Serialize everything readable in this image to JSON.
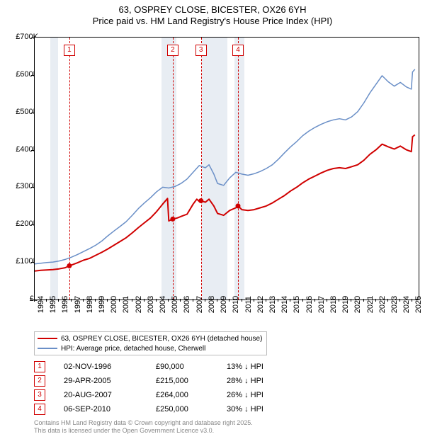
{
  "title": {
    "line1": "63, OSPREY CLOSE, BICESTER, OX26 6YH",
    "line2": "Price paid vs. HM Land Registry's House Price Index (HPI)",
    "fontsize": 13,
    "color": "#000000"
  },
  "chart": {
    "type": "line",
    "background_color": "#ffffff",
    "recession_band_color": "#e8edf3",
    "border_color": "#000000",
    "x": {
      "min": 1994,
      "max": 2025.5,
      "tick_years": [
        1994,
        1995,
        1996,
        1997,
        1998,
        1999,
        2000,
        2001,
        2002,
        2003,
        2004,
        2005,
        2006,
        2007,
        2008,
        2009,
        2010,
        2011,
        2012,
        2013,
        2014,
        2015,
        2016,
        2017,
        2018,
        2019,
        2020,
        2021,
        2022,
        2023,
        2024,
        2025
      ],
      "label_fontsize": 11
    },
    "y": {
      "min": 0,
      "max": 700000,
      "ticks": [
        0,
        100000,
        200000,
        300000,
        400000,
        500000,
        600000,
        700000
      ],
      "tick_labels": [
        "£0",
        "£100K",
        "£200K",
        "£300K",
        "£400K",
        "£500K",
        "£600K",
        "£700K"
      ],
      "label_fontsize": 11
    },
    "recession_bands": [
      {
        "start": 1995.3,
        "end": 1995.9
      },
      {
        "start": 2004.4,
        "end": 2005.6
      },
      {
        "start": 2007.7,
        "end": 2009.8
      },
      {
        "start": 2010.4,
        "end": 2011.2
      }
    ],
    "sale_markers": [
      {
        "n": "1",
        "year": 1996.84,
        "date": "02-NOV-1996",
        "price": "£90,000",
        "delta_pct": "13%",
        "delta_dir": "down"
      },
      {
        "n": "2",
        "year": 2005.33,
        "date": "29-APR-2005",
        "price": "£215,000",
        "delta_pct": "28%",
        "delta_dir": "down"
      },
      {
        "n": "3",
        "year": 2007.64,
        "date": "20-AUG-2007",
        "price": "£264,000",
        "delta_pct": "26%",
        "delta_dir": "down"
      },
      {
        "n": "4",
        "year": 2010.68,
        "date": "06-SEP-2010",
        "price": "£250,000",
        "delta_pct": "30%",
        "delta_dir": "down"
      }
    ],
    "series": [
      {
        "name": "price_paid",
        "label": "63, OSPREY CLOSE, BICESTER, OX26 6YH (detached house)",
        "color": "#d00000",
        "line_width": 2,
        "markers": [
          {
            "x": 1996.84,
            "y": 90000
          },
          {
            "x": 2005.33,
            "y": 215000
          },
          {
            "x": 2007.64,
            "y": 264000
          },
          {
            "x": 2010.68,
            "y": 250000
          }
        ],
        "marker_radius": 3.5,
        "points": [
          {
            "x": 1994.0,
            "y": 76000
          },
          {
            "x": 1994.5,
            "y": 78000
          },
          {
            "x": 1995.0,
            "y": 79000
          },
          {
            "x": 1995.5,
            "y": 80000
          },
          {
            "x": 1996.0,
            "y": 82000
          },
          {
            "x": 1996.5,
            "y": 85000
          },
          {
            "x": 1996.84,
            "y": 90000
          },
          {
            "x": 1997.0,
            "y": 92000
          },
          {
            "x": 1997.5,
            "y": 98000
          },
          {
            "x": 1998.0,
            "y": 105000
          },
          {
            "x": 1998.5,
            "y": 110000
          },
          {
            "x": 1999.0,
            "y": 118000
          },
          {
            "x": 1999.5,
            "y": 126000
          },
          {
            "x": 2000.0,
            "y": 135000
          },
          {
            "x": 2000.5,
            "y": 145000
          },
          {
            "x": 2001.0,
            "y": 155000
          },
          {
            "x": 2001.5,
            "y": 165000
          },
          {
            "x": 2002.0,
            "y": 178000
          },
          {
            "x": 2002.5,
            "y": 192000
          },
          {
            "x": 2003.0,
            "y": 205000
          },
          {
            "x": 2003.5,
            "y": 218000
          },
          {
            "x": 2004.0,
            "y": 235000
          },
          {
            "x": 2004.5,
            "y": 255000
          },
          {
            "x": 2004.9,
            "y": 270000
          },
          {
            "x": 2005.0,
            "y": 210000
          },
          {
            "x": 2005.33,
            "y": 215000
          },
          {
            "x": 2005.7,
            "y": 218000
          },
          {
            "x": 2006.0,
            "y": 222000
          },
          {
            "x": 2006.5,
            "y": 228000
          },
          {
            "x": 2007.0,
            "y": 255000
          },
          {
            "x": 2007.3,
            "y": 268000
          },
          {
            "x": 2007.5,
            "y": 262000
          },
          {
            "x": 2007.64,
            "y": 264000
          },
          {
            "x": 2008.0,
            "y": 260000
          },
          {
            "x": 2008.3,
            "y": 268000
          },
          {
            "x": 2008.7,
            "y": 250000
          },
          {
            "x": 2009.0,
            "y": 230000
          },
          {
            "x": 2009.5,
            "y": 225000
          },
          {
            "x": 2010.0,
            "y": 238000
          },
          {
            "x": 2010.5,
            "y": 245000
          },
          {
            "x": 2010.68,
            "y": 250000
          },
          {
            "x": 2011.0,
            "y": 240000
          },
          {
            "x": 2011.5,
            "y": 238000
          },
          {
            "x": 2012.0,
            "y": 240000
          },
          {
            "x": 2012.5,
            "y": 245000
          },
          {
            "x": 2013.0,
            "y": 250000
          },
          {
            "x": 2013.5,
            "y": 258000
          },
          {
            "x": 2014.0,
            "y": 268000
          },
          {
            "x": 2014.5,
            "y": 278000
          },
          {
            "x": 2015.0,
            "y": 290000
          },
          {
            "x": 2015.5,
            "y": 300000
          },
          {
            "x": 2016.0,
            "y": 312000
          },
          {
            "x": 2016.5,
            "y": 322000
          },
          {
            "x": 2017.0,
            "y": 330000
          },
          {
            "x": 2017.5,
            "y": 338000
          },
          {
            "x": 2018.0,
            "y": 345000
          },
          {
            "x": 2018.5,
            "y": 350000
          },
          {
            "x": 2019.0,
            "y": 352000
          },
          {
            "x": 2019.5,
            "y": 350000
          },
          {
            "x": 2020.0,
            "y": 355000
          },
          {
            "x": 2020.5,
            "y": 360000
          },
          {
            "x": 2021.0,
            "y": 372000
          },
          {
            "x": 2021.5,
            "y": 388000
          },
          {
            "x": 2022.0,
            "y": 400000
          },
          {
            "x": 2022.5,
            "y": 415000
          },
          {
            "x": 2023.0,
            "y": 408000
          },
          {
            "x": 2023.5,
            "y": 402000
          },
          {
            "x": 2024.0,
            "y": 410000
          },
          {
            "x": 2024.5,
            "y": 400000
          },
          {
            "x": 2024.9,
            "y": 395000
          },
          {
            "x": 2025.0,
            "y": 435000
          },
          {
            "x": 2025.2,
            "y": 440000
          }
        ]
      },
      {
        "name": "hpi",
        "label": "HPI: Average price, detached house, Cherwell",
        "color": "#6a8fc7",
        "line_width": 1.5,
        "points": [
          {
            "x": 1994.0,
            "y": 95000
          },
          {
            "x": 1994.5,
            "y": 97000
          },
          {
            "x": 1995.0,
            "y": 99000
          },
          {
            "x": 1995.5,
            "y": 100000
          },
          {
            "x": 1996.0,
            "y": 103000
          },
          {
            "x": 1996.5,
            "y": 107000
          },
          {
            "x": 1997.0,
            "y": 113000
          },
          {
            "x": 1997.5,
            "y": 120000
          },
          {
            "x": 1998.0,
            "y": 128000
          },
          {
            "x": 1998.5,
            "y": 136000
          },
          {
            "x": 1999.0,
            "y": 145000
          },
          {
            "x": 1999.5,
            "y": 156000
          },
          {
            "x": 2000.0,
            "y": 170000
          },
          {
            "x": 2000.5,
            "y": 183000
          },
          {
            "x": 2001.0,
            "y": 195000
          },
          {
            "x": 2001.5,
            "y": 208000
          },
          {
            "x": 2002.0,
            "y": 225000
          },
          {
            "x": 2002.5,
            "y": 243000
          },
          {
            "x": 2003.0,
            "y": 258000
          },
          {
            "x": 2003.5,
            "y": 272000
          },
          {
            "x": 2004.0,
            "y": 288000
          },
          {
            "x": 2004.5,
            "y": 300000
          },
          {
            "x": 2005.0,
            "y": 298000
          },
          {
            "x": 2005.5,
            "y": 302000
          },
          {
            "x": 2006.0,
            "y": 310000
          },
          {
            "x": 2006.5,
            "y": 322000
          },
          {
            "x": 2007.0,
            "y": 340000
          },
          {
            "x": 2007.5,
            "y": 358000
          },
          {
            "x": 2008.0,
            "y": 352000
          },
          {
            "x": 2008.3,
            "y": 360000
          },
          {
            "x": 2008.7,
            "y": 335000
          },
          {
            "x": 2009.0,
            "y": 310000
          },
          {
            "x": 2009.5,
            "y": 305000
          },
          {
            "x": 2010.0,
            "y": 325000
          },
          {
            "x": 2010.5,
            "y": 340000
          },
          {
            "x": 2011.0,
            "y": 335000
          },
          {
            "x": 2011.5,
            "y": 332000
          },
          {
            "x": 2012.0,
            "y": 336000
          },
          {
            "x": 2012.5,
            "y": 342000
          },
          {
            "x": 2013.0,
            "y": 350000
          },
          {
            "x": 2013.5,
            "y": 360000
          },
          {
            "x": 2014.0,
            "y": 375000
          },
          {
            "x": 2014.5,
            "y": 392000
          },
          {
            "x": 2015.0,
            "y": 408000
          },
          {
            "x": 2015.5,
            "y": 422000
          },
          {
            "x": 2016.0,
            "y": 438000
          },
          {
            "x": 2016.5,
            "y": 450000
          },
          {
            "x": 2017.0,
            "y": 460000
          },
          {
            "x": 2017.5,
            "y": 468000
          },
          {
            "x": 2018.0,
            "y": 475000
          },
          {
            "x": 2018.5,
            "y": 480000
          },
          {
            "x": 2019.0,
            "y": 483000
          },
          {
            "x": 2019.5,
            "y": 480000
          },
          {
            "x": 2020.0,
            "y": 488000
          },
          {
            "x": 2020.5,
            "y": 502000
          },
          {
            "x": 2021.0,
            "y": 525000
          },
          {
            "x": 2021.5,
            "y": 552000
          },
          {
            "x": 2022.0,
            "y": 575000
          },
          {
            "x": 2022.5,
            "y": 598000
          },
          {
            "x": 2023.0,
            "y": 582000
          },
          {
            "x": 2023.5,
            "y": 570000
          },
          {
            "x": 2024.0,
            "y": 580000
          },
          {
            "x": 2024.5,
            "y": 568000
          },
          {
            "x": 2024.9,
            "y": 562000
          },
          {
            "x": 2025.0,
            "y": 608000
          },
          {
            "x": 2025.2,
            "y": 615000
          }
        ]
      }
    ]
  },
  "legend": {
    "border_color": "#bbbbbb",
    "fontsize": 10
  },
  "sales_table": {
    "delta_suffix": "HPI",
    "fontsize": 11
  },
  "attribution": {
    "line1": "Contains HM Land Registry data © Crown copyright and database right 2025.",
    "line2": "This data is licensed under the Open Government Licence v3.0.",
    "color": "#888888",
    "fontsize": 9
  }
}
